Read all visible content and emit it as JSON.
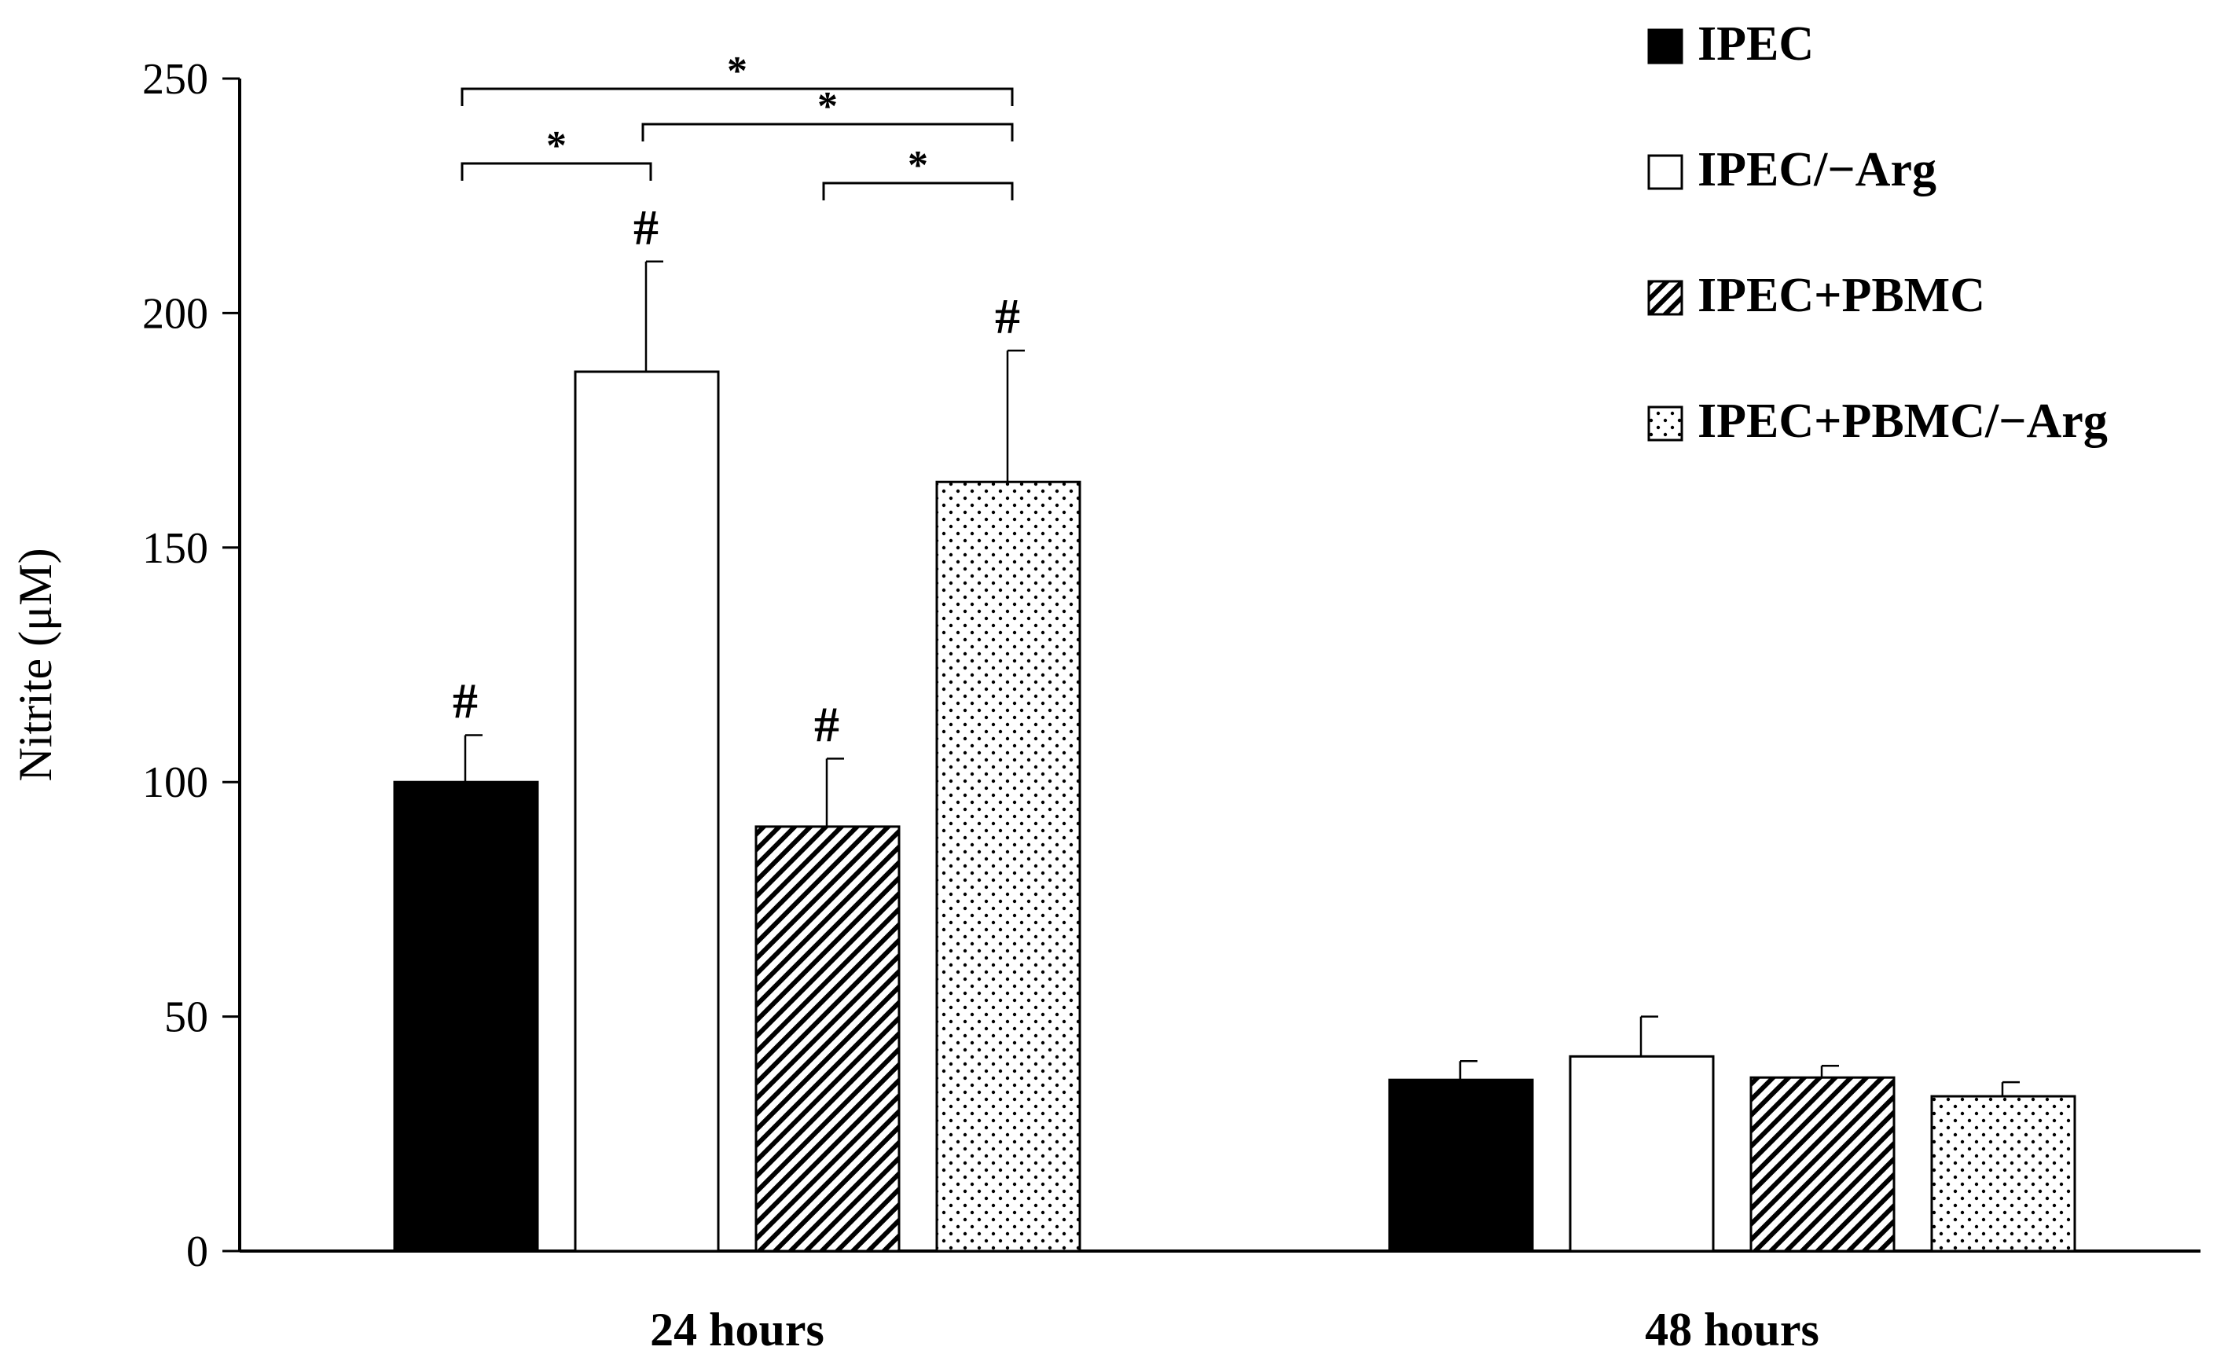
{
  "chart_data": {
    "type": "bar",
    "title": "",
    "xlabel": "",
    "ylabel": "Nitrite (μM)",
    "ylim": [
      0,
      250
    ],
    "yticks": [
      0,
      50,
      100,
      150,
      200,
      250
    ],
    "grid": false,
    "legend_position": "top-right",
    "categories": [
      "24 hours",
      "48 hours"
    ],
    "series": [
      {
        "name": "IPEC",
        "fill": "solid",
        "color": "#000000",
        "values": [
          100,
          36.5
        ],
        "errors": [
          10,
          4
        ],
        "marks": [
          "#",
          ""
        ]
      },
      {
        "name": "IPEC/−Arg",
        "fill": "open",
        "color": "#ffffff",
        "values": [
          187.5,
          41.5
        ],
        "errors": [
          23.5,
          8.5
        ],
        "marks": [
          "#",
          ""
        ]
      },
      {
        "name": "IPEC+PBMC",
        "fill": "diagonal-hatch",
        "color": "#000000",
        "values": [
          90.5,
          37
        ],
        "errors": [
          14.5,
          2.5
        ],
        "marks": [
          "#",
          ""
        ]
      },
      {
        "name": "IPEC+PBMC/−Arg",
        "fill": "dotted",
        "color": "#000000",
        "values": [
          164,
          33
        ],
        "errors": [
          28,
          3
        ],
        "marks": [
          "#",
          ""
        ]
      }
    ],
    "significance": [
      {
        "from": 0,
        "to": 1,
        "label": "*"
      },
      {
        "from": 1,
        "to": 3,
        "label": "*"
      },
      {
        "from": 0,
        "to": 3,
        "label": "*"
      },
      {
        "from": 2,
        "to": 3,
        "label": "*"
      }
    ]
  }
}
